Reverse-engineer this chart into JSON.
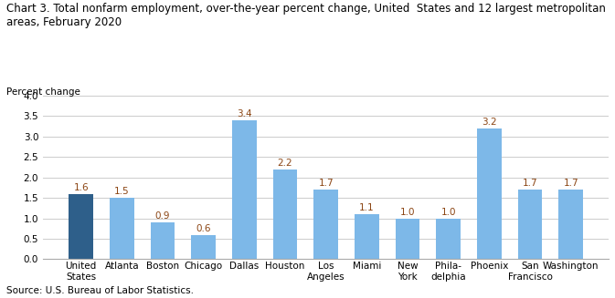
{
  "title_line1": "Chart 3. Total nonfarm employment, over-the-year percent change, United  States and 12 largest metropolitan",
  "title_line2": "areas, February 2020",
  "ylabel": "Percent change",
  "source": "Source: U.S. Bureau of Labor Statistics.",
  "categories": [
    "United\nStates",
    "Atlanta",
    "Boston",
    "Chicago",
    "Dallas",
    "Houston",
    "Los\nAngeles",
    "Miami",
    "New\nYork",
    "Phila-\ndelphia",
    "Phoenix",
    "San\nFrancisco",
    "Washington"
  ],
  "values": [
    1.6,
    1.5,
    0.9,
    0.6,
    3.4,
    2.2,
    1.7,
    1.1,
    1.0,
    1.0,
    3.2,
    1.7,
    1.7
  ],
  "bar_colors": [
    "#2e5f8a",
    "#7db8e8",
    "#7db8e8",
    "#7db8e8",
    "#7db8e8",
    "#7db8e8",
    "#7db8e8",
    "#7db8e8",
    "#7db8e8",
    "#7db8e8",
    "#7db8e8",
    "#7db8e8",
    "#7db8e8"
  ],
  "ylim": [
    0,
    4.0
  ],
  "yticks": [
    0.0,
    0.5,
    1.0,
    1.5,
    2.0,
    2.5,
    3.0,
    3.5,
    4.0
  ],
  "value_color": "#8b4513",
  "title_fontsize": 8.5,
  "label_fontsize": 7.5,
  "tick_fontsize": 7.5,
  "source_fontsize": 7.5,
  "background_color": "#ffffff"
}
